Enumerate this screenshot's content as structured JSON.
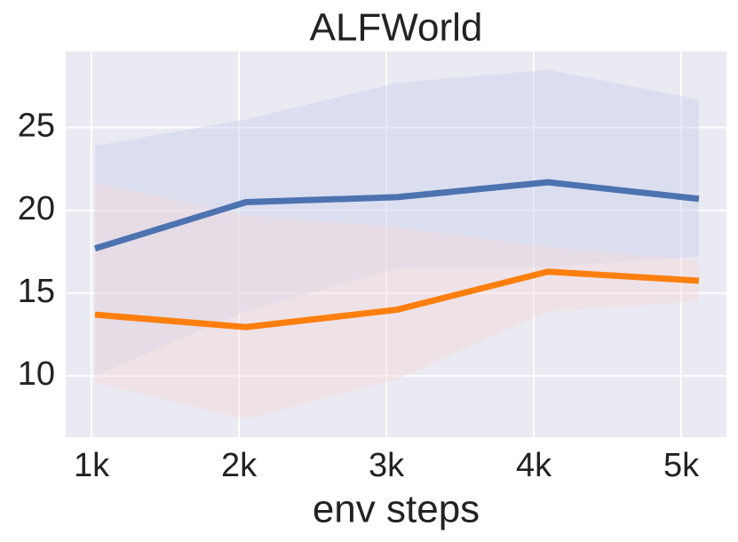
{
  "chart_data": {
    "type": "line",
    "title": "ALFWorld",
    "x_label": "env steps",
    "x": [
      1024,
      2048,
      3072,
      4096,
      5120
    ],
    "series": [
      {
        "color": "#4c72b0",
        "band_color": "#c8d0ea",
        "values": [
          17.7,
          20.5,
          20.8,
          21.7,
          20.7
        ],
        "lower": [
          10.05,
          13.9,
          16.5,
          16.6,
          17.2
        ],
        "upper": [
          23.9,
          25.5,
          27.7,
          28.5,
          26.7
        ]
      },
      {
        "color": "#ff7f0e",
        "band_color": "#f3dada",
        "values": [
          13.7,
          12.95,
          14.0,
          16.3,
          15.75
        ],
        "lower": [
          9.6,
          7.4,
          9.8,
          13.9,
          14.5
        ],
        "upper": [
          21.7,
          19.7,
          19.0,
          17.8,
          17.0
        ]
      }
    ],
    "xlim": [
      825,
      5307
    ],
    "ylim": [
      6.3,
      29.6
    ],
    "xticks": [
      {
        "value": 1000,
        "label": "1k"
      },
      {
        "value": 2000,
        "label": "2k"
      },
      {
        "value": 3000,
        "label": "3k"
      },
      {
        "value": 4000,
        "label": "4k"
      },
      {
        "value": 5000,
        "label": "5k"
      }
    ],
    "yticks": [
      10,
      15,
      20,
      25
    ],
    "grid": true,
    "background": "#eaeaf2"
  }
}
